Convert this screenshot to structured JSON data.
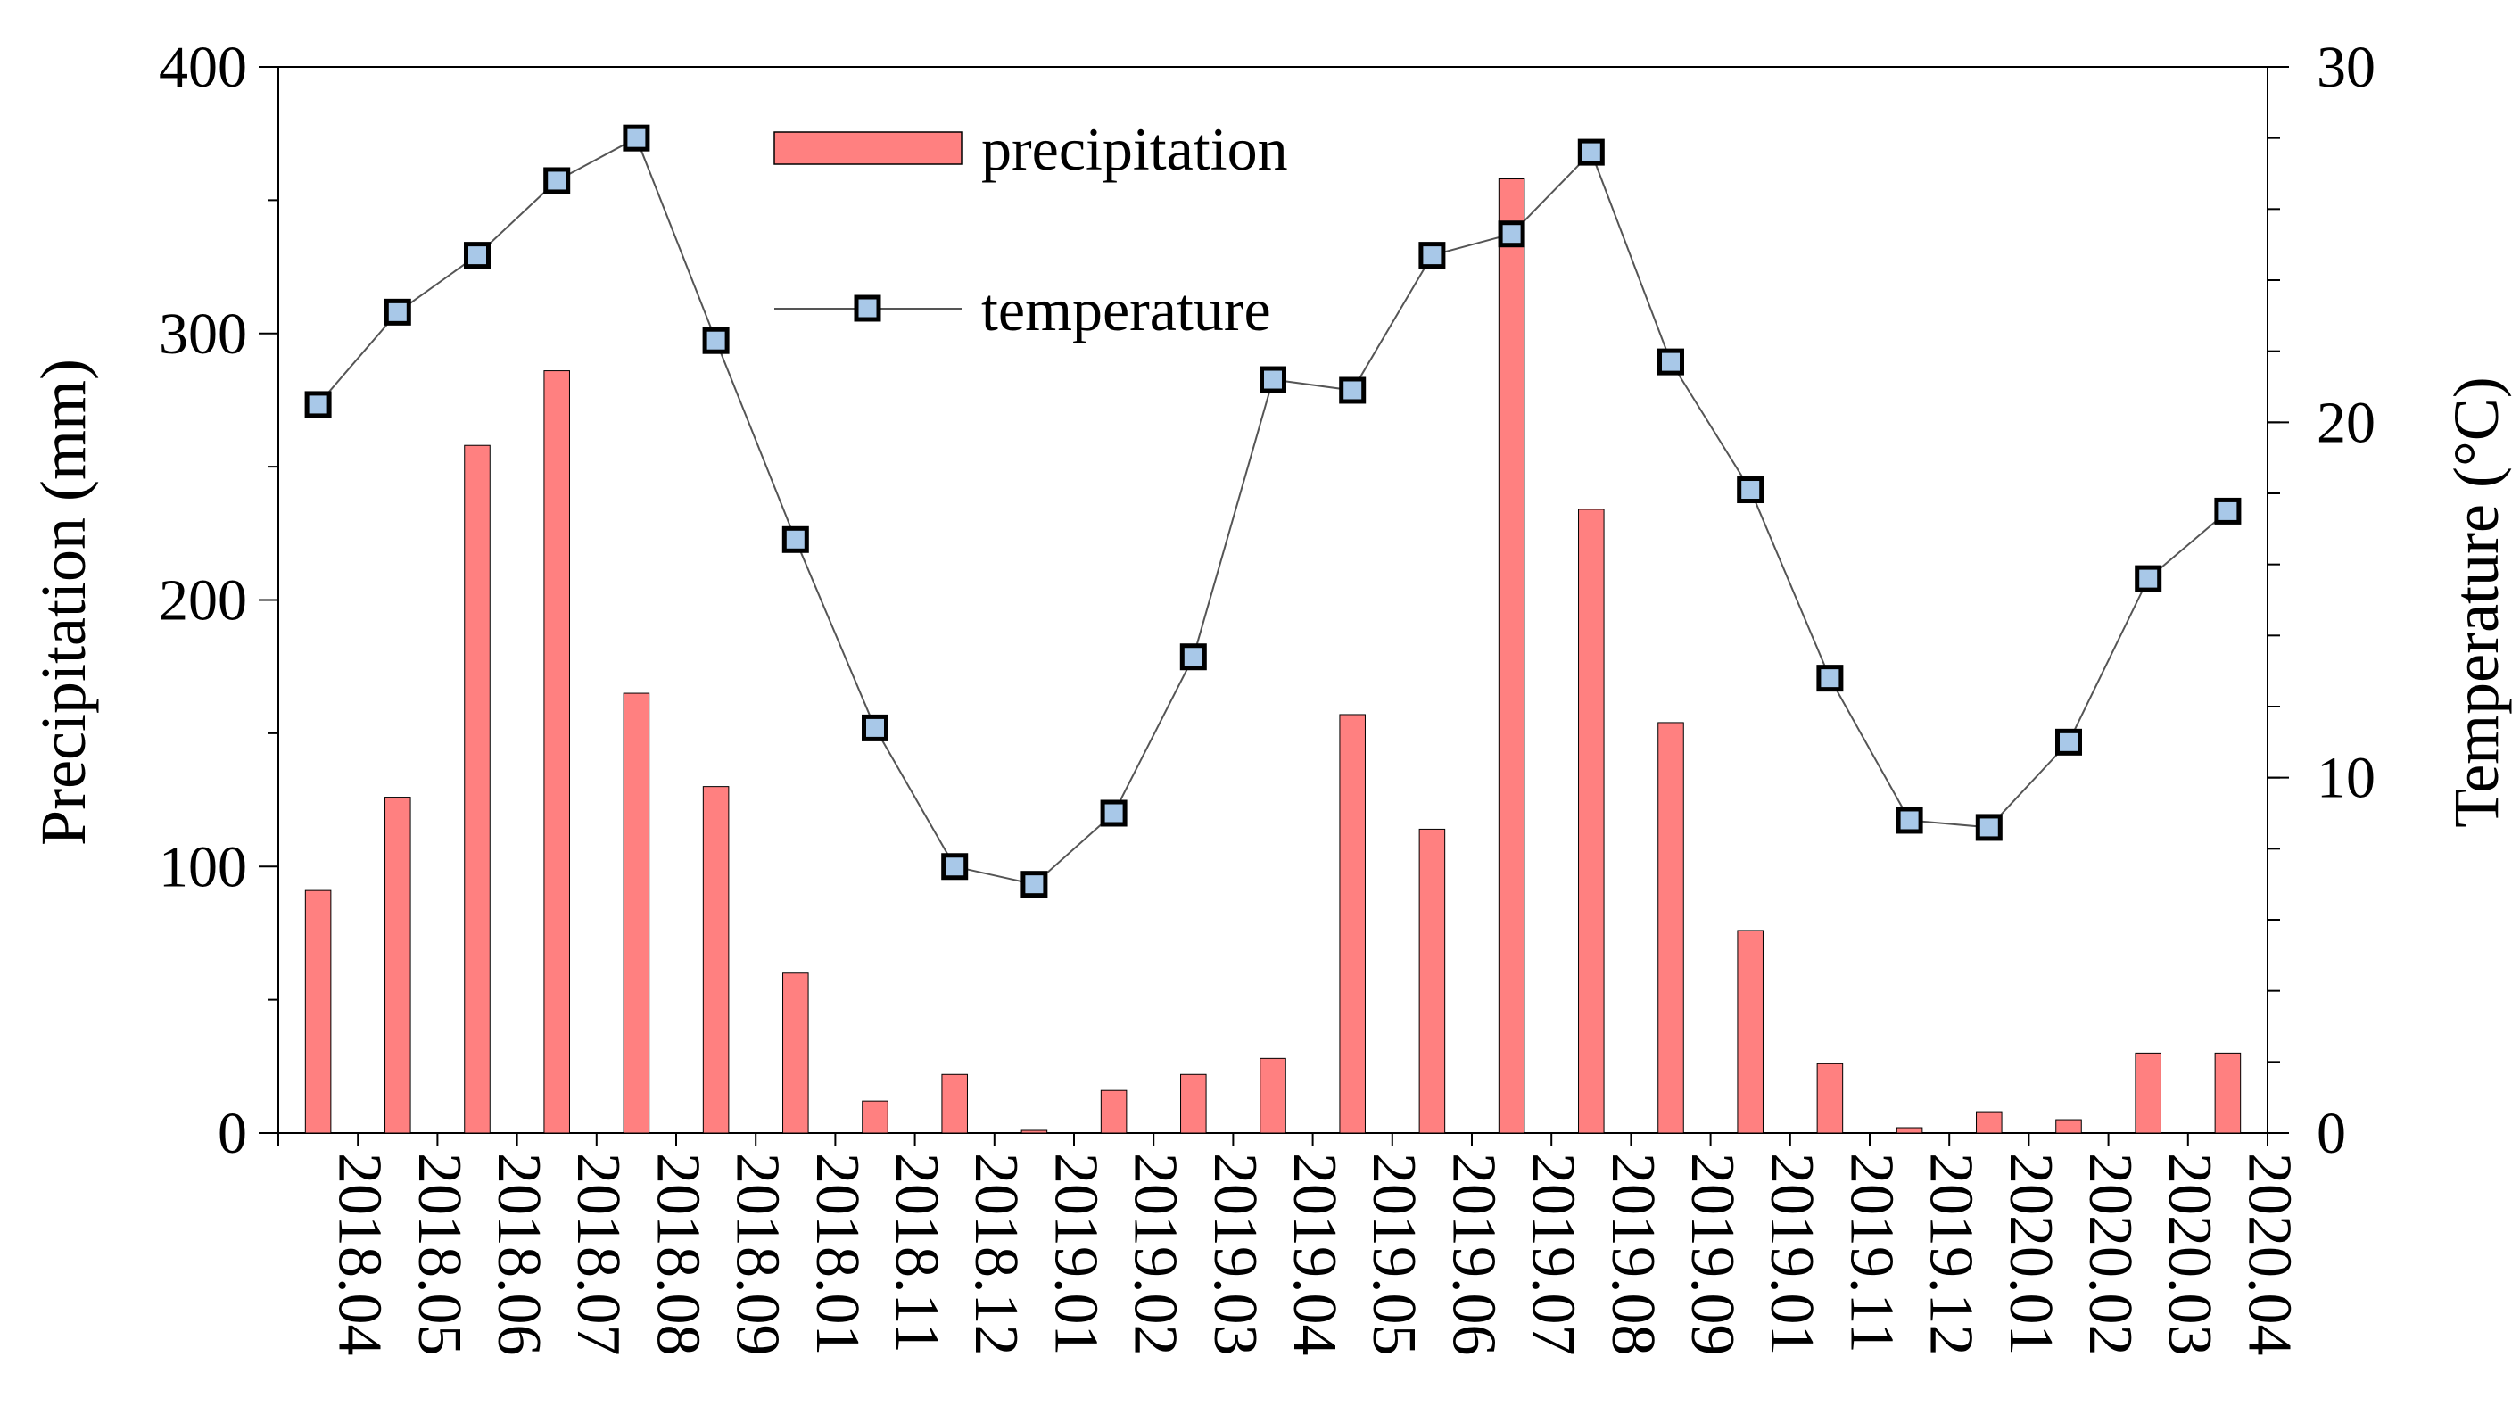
{
  "chart_data": {
    "type": "bar+line",
    "title": "",
    "categories": [
      "2018.04",
      "2018.05",
      "2018.06",
      "2018.07",
      "2018.08",
      "2018.09",
      "2018.01",
      "2018.11",
      "2018.12",
      "2019.01",
      "2019.02",
      "2019.03",
      "2019.04",
      "2019.05",
      "2019.06",
      "2019.07",
      "2019.08",
      "2019.09",
      "2019.01",
      "2019.11",
      "2019.12",
      "2020.01",
      "2020.02",
      "2020.03",
      "2020.04"
    ],
    "series": [
      {
        "name": "precipitation",
        "kind": "bar",
        "axis": "left",
        "color": "#ff8080",
        "values": [
          91,
          126,
          258,
          286,
          165,
          130,
          60,
          12,
          22,
          1,
          16,
          22,
          28,
          157,
          114,
          358,
          234,
          154,
          76,
          26,
          2,
          8,
          5,
          30,
          30
        ]
      },
      {
        "name": "temperature",
        "kind": "line",
        "axis": "right",
        "color": "#000000",
        "marker_fill": "#a8c8e8",
        "values": [
          20.5,
          23.1,
          24.7,
          26.8,
          28.0,
          22.3,
          16.7,
          11.4,
          7.5,
          7.0,
          9.0,
          13.4,
          21.2,
          20.9,
          24.7,
          25.3,
          27.6,
          21.7,
          18.1,
          12.8,
          8.8,
          8.6,
          11.0,
          15.6,
          17.5
        ]
      }
    ],
    "y_left": {
      "label": "Precipitation (mm)",
      "min": 0,
      "max": 400,
      "ticks": [
        0,
        100,
        200,
        300,
        400
      ]
    },
    "y_right": {
      "label": "Temperature (°C)",
      "min": 0,
      "max": 30,
      "ticks": [
        0,
        10,
        20,
        30
      ]
    },
    "legend": {
      "position": "top-center",
      "entries": [
        "precipitation",
        "temperature"
      ]
    },
    "grid": false
  }
}
